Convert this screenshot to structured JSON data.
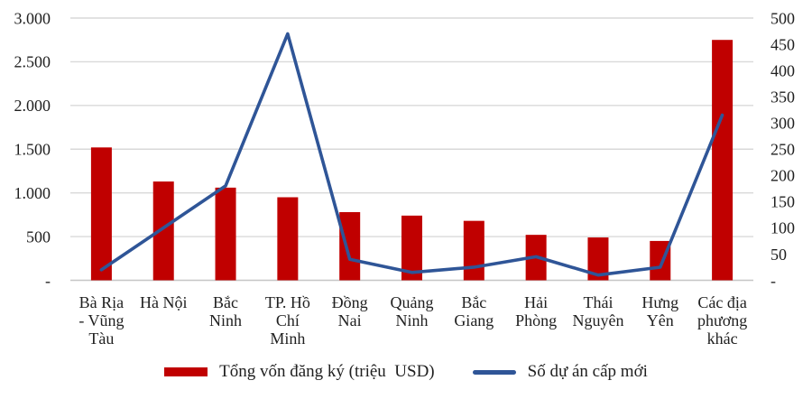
{
  "chart_data": {
    "type": "combo-bar-line",
    "title": "",
    "background": "#FFFFFF",
    "grid": true,
    "gridline_color": "#D9D9D9",
    "axis_line_color": "#C6C6C6",
    "text_color": "#1f1f1f",
    "legend_position": "bottom",
    "categories": [
      "Bà Rịa - Vũng Tàu",
      "Hà Nội",
      "Bắc Ninh",
      "TP. Hồ Chí Minh",
      "Đồng Nai",
      "Quảng Ninh",
      "Bắc Giang",
      "Hải Phòng",
      "Thái Nguyên",
      "Hưng Yên",
      "Các địa phương khác"
    ],
    "category_label_lines": [
      [
        "Bà Rịa",
        "- Vũng",
        "Tàu"
      ],
      [
        "Hà Nội"
      ],
      [
        "Bắc",
        "Ninh"
      ],
      [
        "TP. Hồ",
        "Chí",
        "Minh"
      ],
      [
        "Đồng",
        "Nai"
      ],
      [
        "Quảng",
        "Ninh"
      ],
      [
        "Bắc",
        "Giang"
      ],
      [
        "Hải",
        "Phòng"
      ],
      [
        "Thái",
        "Nguyên"
      ],
      [
        "Hưng",
        "Yên"
      ],
      [
        "Các địa",
        "phương",
        "khác"
      ]
    ],
    "series": [
      {
        "name": "Tổng vốn đăng ký (triệu  USD)",
        "type": "bar",
        "axis": "left",
        "color": "#C00000",
        "values": [
          1520,
          1130,
          1060,
          950,
          780,
          740,
          680,
          520,
          490,
          450,
          2750
        ]
      },
      {
        "name": "Số dự án cấp mới",
        "type": "line",
        "axis": "right",
        "color": "#2F5597",
        "values": [
          20,
          100,
          180,
          470,
          40,
          15,
          25,
          45,
          10,
          25,
          315
        ]
      }
    ],
    "left_axis": {
      "min": 0,
      "max": 3000,
      "step": 500,
      "tick_labels": [
        "3.000",
        "2.500",
        "2.000",
        "1.500",
        "1.000",
        "500",
        "-"
      ]
    },
    "right_axis": {
      "min": 0,
      "max": 500,
      "step": 50,
      "tick_labels": [
        "500",
        "450",
        "400",
        "350",
        "300",
        "250",
        "200",
        "150",
        "100",
        "50",
        "-"
      ]
    }
  }
}
